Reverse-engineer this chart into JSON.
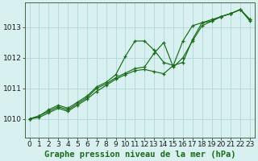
{
  "background_color": "#d8f0f0",
  "grid_color": "#b0d8d8",
  "line_color": "#1a6b1a",
  "xlabel": "Graphe pression niveau de la mer (hPa)",
  "xlabel_fontsize": 7.5,
  "tick_fontsize": 6.5,
  "yticks": [
    1010,
    1011,
    1012,
    1013
  ],
  "xlim": [
    -0.5,
    23.5
  ],
  "ylim": [
    1009.4,
    1013.8
  ],
  "series1_x": [
    0,
    1,
    2,
    3,
    4,
    5,
    6,
    7,
    8,
    9,
    10,
    11,
    12,
    13,
    14,
    15,
    16,
    17,
    18,
    19,
    20,
    21,
    22,
    23
  ],
  "series1_y": [
    1010.0,
    1010.1,
    1010.3,
    1010.45,
    1010.35,
    1010.55,
    1010.75,
    1011.05,
    1011.2,
    1011.45,
    1012.05,
    1012.55,
    1012.55,
    1012.25,
    1011.85,
    1011.75,
    1011.85,
    1012.6,
    1013.15,
    1013.2,
    1013.35,
    1013.45,
    1013.58,
    1013.2
  ],
  "series2_x": [
    0,
    1,
    2,
    3,
    4,
    5,
    6,
    7,
    8,
    9,
    10,
    11,
    12,
    13,
    14,
    15,
    16,
    17,
    18,
    19,
    20,
    21,
    22,
    23
  ],
  "series2_y": [
    1010.0,
    1010.1,
    1010.25,
    1010.4,
    1010.3,
    1010.5,
    1010.7,
    1011.0,
    1011.15,
    1011.35,
    1011.5,
    1011.65,
    1011.7,
    1012.15,
    1012.5,
    1011.7,
    1012.0,
    1012.55,
    1013.05,
    1013.2,
    1013.35,
    1013.45,
    1013.58,
    1013.25
  ],
  "series3_x": [
    0,
    1,
    2,
    3,
    4,
    5,
    6,
    7,
    8,
    9,
    10,
    11,
    12,
    13,
    14,
    15,
    16,
    17,
    18,
    19,
    20,
    21,
    22,
    23
  ],
  "series3_y": [
    1010.0,
    1010.05,
    1010.2,
    1010.35,
    1010.25,
    1010.45,
    1010.65,
    1010.9,
    1011.1,
    1011.3,
    1011.45,
    1011.58,
    1011.62,
    1011.55,
    1011.48,
    1011.75,
    1012.55,
    1013.05,
    1013.15,
    1013.25,
    1013.35,
    1013.45,
    1013.58,
    1013.25
  ]
}
